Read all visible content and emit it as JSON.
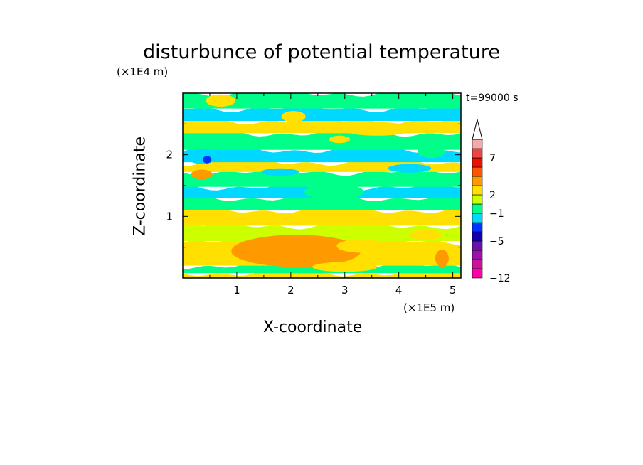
{
  "chart_data": {
    "type": "heatmap",
    "title": "disturbunce of potential temperature",
    "xlabel": "X-coordinate",
    "ylabel": "Z-coordinate",
    "x_scale": "(×1E5 m)",
    "y_scale": "(×1E4 m)",
    "time_label": "t=99000 s",
    "xlim": [
      0,
      5.15
    ],
    "ylim": [
      0,
      3.0
    ],
    "x_ticks": [
      "1",
      "2",
      "3",
      "4",
      "5"
    ],
    "y_ticks": [
      "1",
      "2"
    ],
    "colorbar": {
      "tick_labels": [
        "7",
        "2",
        "−1",
        "−5",
        "−12"
      ],
      "colors": [
        "#ff00aa",
        "#cc1199",
        "#9911aa",
        "#6611aa",
        "#1100aa",
        "#0033ff",
        "#00d8ff",
        "#00ff88",
        "#ccff00",
        "#ffe000",
        "#ff9900",
        "#ff5500",
        "#ee1100",
        "#ee4444",
        "#f7a9a9"
      ],
      "extend_top": true
    },
    "level_colors": {
      "pos4": "#ff9900",
      "pos3": "#ffe000",
      "pos2": "#ccff00",
      "zero": "#00ff88",
      "neg1": "#00d8ff",
      "neg2": "#0033ff"
    },
    "bands": [
      {
        "z": [
          0.0,
          0.08
        ],
        "level": "pos3"
      },
      {
        "z": [
          0.08,
          0.2
        ],
        "level": "zero"
      },
      {
        "z": [
          0.2,
          0.6
        ],
        "level": "pos3"
      },
      {
        "z": [
          0.6,
          0.85
        ],
        "level": "pos2"
      },
      {
        "z": [
          0.85,
          1.1
        ],
        "level": "pos3"
      },
      {
        "z": [
          1.1,
          1.3
        ],
        "level": "zero"
      },
      {
        "z": [
          1.3,
          1.48
        ],
        "level": "neg1"
      },
      {
        "z": [
          1.48,
          1.72
        ],
        "level": "zero"
      },
      {
        "z": [
          1.72,
          1.88
        ],
        "level": "pos3"
      },
      {
        "z": [
          1.88,
          2.08
        ],
        "level": "neg1"
      },
      {
        "z": [
          2.08,
          2.35
        ],
        "level": "zero"
      },
      {
        "z": [
          2.35,
          2.55
        ],
        "level": "pos3"
      },
      {
        "z": [
          2.55,
          2.75
        ],
        "level": "neg1"
      },
      {
        "z": [
          2.75,
          3.0
        ],
        "level": "zero"
      }
    ],
    "blobs": [
      {
        "x": 2.1,
        "z": 0.44,
        "rx": 2.4,
        "rz": 0.26,
        "level": "pos4"
      },
      {
        "x": 1.6,
        "z": 0.42,
        "rx": 1.4,
        "rz": 0.14,
        "level": "pos4"
      },
      {
        "x": 3.3,
        "z": 0.52,
        "rx": 0.9,
        "rz": 0.11,
        "level": "pos3"
      },
      {
        "x": 4.8,
        "z": 0.32,
        "rx": 0.25,
        "rz": 0.14,
        "level": "pos4"
      },
      {
        "x": 0.35,
        "z": 1.97,
        "rx": 0.55,
        "rz": 0.12,
        "level": "neg1"
      },
      {
        "x": 0.45,
        "z": 1.92,
        "rx": 0.16,
        "rz": 0.06,
        "level": "neg2"
      },
      {
        "x": 0.35,
        "z": 1.68,
        "rx": 0.4,
        "rz": 0.08,
        "level": "pos4"
      },
      {
        "x": 3.6,
        "z": 2.42,
        "rx": 1.3,
        "rz": 0.11,
        "level": "pos3"
      },
      {
        "x": 2.05,
        "z": 2.62,
        "rx": 0.45,
        "rz": 0.09,
        "level": "pos3"
      },
      {
        "x": 2.8,
        "z": 1.4,
        "rx": 1.1,
        "rz": 0.13,
        "level": "zero"
      },
      {
        "x": 1.8,
        "z": 1.72,
        "rx": 0.7,
        "rz": 0.06,
        "level": "neg1"
      },
      {
        "x": 4.2,
        "z": 1.78,
        "rx": 0.8,
        "rz": 0.07,
        "level": "neg1"
      },
      {
        "x": 4.6,
        "z": 2.05,
        "rx": 0.5,
        "rz": 0.1,
        "level": "zero"
      },
      {
        "x": 2.9,
        "z": 2.25,
        "rx": 0.4,
        "rz": 0.06,
        "level": "pos3"
      },
      {
        "x": 0.7,
        "z": 2.88,
        "rx": 0.55,
        "rz": 0.1,
        "level": "pos3"
      },
      {
        "x": 4.5,
        "z": 0.7,
        "rx": 0.6,
        "rz": 0.08,
        "level": "pos3"
      },
      {
        "x": 3.0,
        "z": 0.18,
        "rx": 1.2,
        "rz": 0.08,
        "level": "pos3"
      }
    ]
  }
}
